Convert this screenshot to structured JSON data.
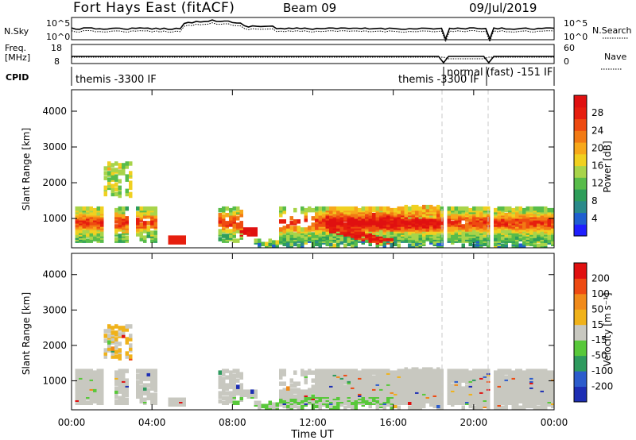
{
  "header": {
    "station": "Fort Hays East (fitACF)",
    "beam": "Beam 09",
    "date": "09/Jul/2019"
  },
  "left_labels": {
    "nsky": "N.Sky",
    "freq_line1": "Freq.",
    "freq_line2": "[MHz]",
    "cpid": "CPID"
  },
  "right_labels": {
    "nsearch": "N.Search",
    "nave": "Nave"
  },
  "strip_axes": {
    "noise_left_top": "10^5",
    "noise_left_bottom": "10^0",
    "noise_right_top": "10^5",
    "noise_right_bottom": "10^0",
    "freq_left_top": "18",
    "freq_left_bottom": "8",
    "nave_right_top": "60",
    "nave_right_bottom": "0"
  },
  "cpid_segments": [
    {
      "label": "themis -3300 IF",
      "start_hour": 0.0,
      "end_hour": 18.5
    },
    {
      "label": "themis -3300 IF",
      "start_hour": 18.5,
      "end_hour": 18.85
    },
    {
      "label": "normal (fast) -151 IF",
      "start_hour": 18.85,
      "end_hour": 24.0
    }
  ],
  "chart_data": [
    {
      "type": "heatmap",
      "panel": "power",
      "ylabel": "Slant Range [km]",
      "xlabel": "",
      "x_ticks": [
        "00:00",
        "04:00",
        "08:00",
        "12:00",
        "16:00",
        "20:00",
        "00:00"
      ],
      "x_range_hours": [
        0,
        24
      ],
      "y_ticks": [
        "1000",
        "2000",
        "3000",
        "4000"
      ],
      "ylim": [
        180,
        4600
      ],
      "colorbar": {
        "label": "Power [dB]",
        "ticks": [
          "4",
          "8",
          "12",
          "16",
          "20",
          "24",
          "28"
        ],
        "range": [
          0,
          30
        ],
        "colors": [
          "#1f1fff",
          "#1f5fd0",
          "#2a8a8a",
          "#2e9e5a",
          "#58bc4a",
          "#a8d44a",
          "#f0d020",
          "#f7a81a",
          "#f27a14",
          "#ee4a10",
          "#e61e0e",
          "#e01010"
        ]
      },
      "gaps_hours": [
        18.5,
        20.8
      ]
    },
    {
      "type": "heatmap",
      "panel": "velocity",
      "ylabel": "Slant Range [km]",
      "xlabel": "Time UT",
      "x_ticks": [
        "00:00",
        "04:00",
        "08:00",
        "12:00",
        "16:00",
        "20:00",
        "00:00"
      ],
      "x_range_hours": [
        0,
        24
      ],
      "y_ticks": [
        "1000",
        "2000",
        "3000",
        "4000"
      ],
      "ylim": [
        180,
        4600
      ],
      "colorbar": {
        "label": "Velocity [m s⁻¹]",
        "ticks": [
          "200",
          "100",
          "50",
          "15",
          "-15",
          "-50",
          "-100",
          "-200"
        ],
        "range": [
          -250,
          250
        ],
        "colors": [
          "#1d2eb4",
          "#2c5ccc",
          "#2e9a5e",
          "#58c83a",
          "#c8c8c0",
          "#f0b21a",
          "#f08a1a",
          "#ee4a12",
          "#e01010"
        ]
      },
      "gaps_hours": [
        18.5,
        20.8
      ]
    }
  ]
}
